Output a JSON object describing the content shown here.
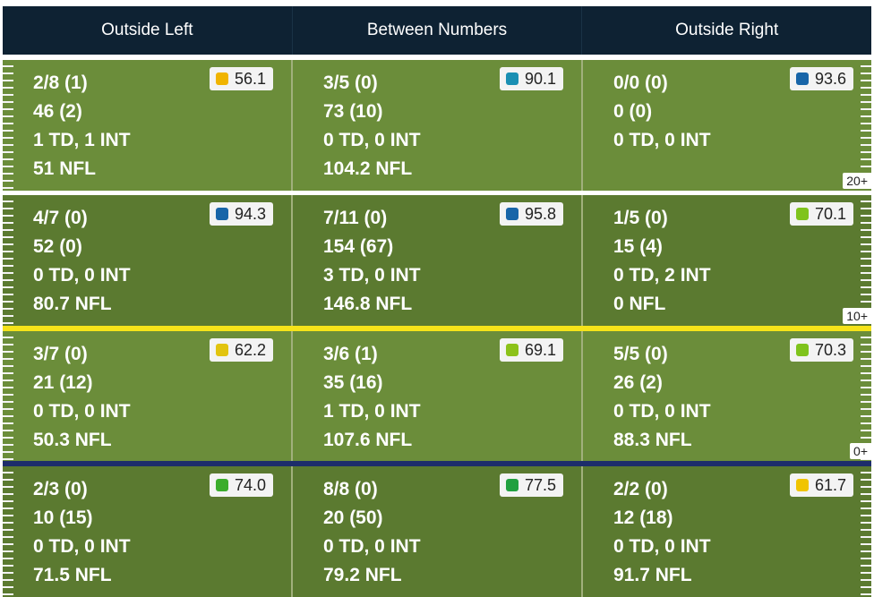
{
  "header": {
    "columns": [
      "Outside Left",
      "Between Numbers",
      "Outside Right"
    ]
  },
  "rows": [
    {
      "yard_label": "20+",
      "cells": [
        {
          "line1": "2/8 (1)",
          "line2": "46 (2)",
          "line3": "1 TD, 1 INT",
          "line4": "51 NFL",
          "grade": "56.1",
          "grade_color": "#f0b400"
        },
        {
          "line1": "3/5 (0)",
          "line2": "73 (10)",
          "line3": "0 TD, 0 INT",
          "line4": "104.2 NFL",
          "grade": "90.1",
          "grade_color": "#1a8fb3"
        },
        {
          "line1": "0/0 (0)",
          "line2": "0 (0)",
          "line3": "0 TD, 0 INT",
          "line4": "",
          "grade": "93.6",
          "grade_color": "#1865a8"
        }
      ]
    },
    {
      "yard_label": "10+",
      "cells": [
        {
          "line1": "4/7 (0)",
          "line2": "52 (0)",
          "line3": "0 TD, 0 INT",
          "line4": "80.7 NFL",
          "grade": "94.3",
          "grade_color": "#1865a8"
        },
        {
          "line1": "7/11 (0)",
          "line2": "154 (67)",
          "line3": "3 TD, 0 INT",
          "line4": "146.8 NFL",
          "grade": "95.8",
          "grade_color": "#1865a8"
        },
        {
          "line1": "1/5 (0)",
          "line2": "15 (4)",
          "line3": "0 TD, 2 INT",
          "line4": "0 NFL",
          "grade": "70.1",
          "grade_color": "#7fc31c"
        }
      ]
    },
    {
      "yard_label": "0+",
      "cells": [
        {
          "line1": "3/7 (0)",
          "line2": "21 (12)",
          "line3": "0 TD, 0 INT",
          "line4": "50.3 NFL",
          "grade": "62.2",
          "grade_color": "#e2c40f"
        },
        {
          "line1": "3/6 (1)",
          "line2": "35 (16)",
          "line3": "1 TD, 0 INT",
          "line4": "107.6 NFL",
          "grade": "69.1",
          "grade_color": "#8cc21a"
        },
        {
          "line1": "5/5 (0)",
          "line2": "26 (2)",
          "line3": "0 TD, 0 INT",
          "line4": "88.3 NFL",
          "grade": "70.3",
          "grade_color": "#7fc31c"
        }
      ]
    },
    {
      "yard_label": "",
      "cells": [
        {
          "line1": "2/3 (0)",
          "line2": "10 (15)",
          "line3": "0 TD, 0 INT",
          "line4": "71.5 NFL",
          "grade": "74.0",
          "grade_color": "#3bac2c"
        },
        {
          "line1": "8/8 (0)",
          "line2": "20 (50)",
          "line3": "0 TD, 0 INT",
          "line4": "79.2 NFL",
          "grade": "77.5",
          "grade_color": "#21a040"
        },
        {
          "line1": "2/2 (0)",
          "line2": "12 (18)",
          "line3": "0 TD, 0 INT",
          "line4": "91.7 NFL",
          "grade": "61.7",
          "grade_color": "#f0c400"
        }
      ]
    }
  ],
  "colors": {
    "header_bg": "#0e2233",
    "field_light": "#6b8d3a",
    "field_dark": "#5b7a30",
    "line_of_scrimmage": "#f5e31a",
    "first_down_line": "#1d2d6b"
  }
}
